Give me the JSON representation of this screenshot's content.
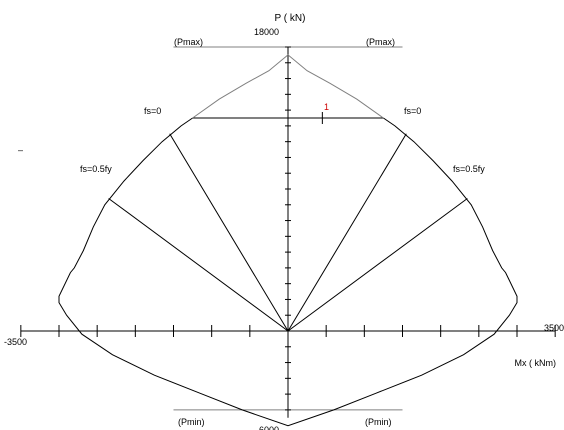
{
  "chart_data": {
    "type": "line",
    "xlabel": "Mx ( kNm)",
    "ylabel": "P ( kN)",
    "xlim": [
      -3500,
      3500
    ],
    "ylim": [
      -6000,
      18000
    ],
    "x_tick_labels": {
      "min": "-3500",
      "max": "3500"
    },
    "y_tick_labels": {
      "max": "18000",
      "min": "6000"
    },
    "x_minor_step": 500,
    "y_minor_step": 1000,
    "pmax_cap": 13500,
    "pmax_line_y": 18000,
    "pmin_line_y": -5000,
    "labels": {
      "pmax_left": "(Pmax)",
      "pmax_right": "(Pmax)",
      "pmin_left": "(Pmin)",
      "pmin_right": "(Pmin)",
      "fs0_left": "fs=0",
      "fs0_right": "fs=0",
      "fs05_left": "fs=0.5fy",
      "fs05_right": "fs=0.5fy",
      "marker": "1",
      "stray_mark": "–"
    },
    "series": [
      {
        "role": "interaction-envelope",
        "color": "#000000",
        "x": [
          -1250,
          -1400,
          -1650,
          -1900,
          -2150,
          -2400,
          -2550,
          -2680,
          -2800,
          -2850,
          -3000,
          -3000,
          -2900,
          -2700,
          -2300,
          -1750,
          -1150,
          -600,
          0,
          600,
          1150,
          1750,
          2300,
          2700,
          2900,
          3000,
          3000,
          2850,
          2800,
          2680,
          2550,
          2400,
          2150,
          1900,
          1650,
          1400,
          1250
        ],
        "y": [
          13500,
          13000,
          12000,
          10800,
          9500,
          8000,
          6600,
          5100,
          4000,
          3700,
          2200,
          1800,
          1000,
          -200,
          -1500,
          -2800,
          -3950,
          -5000,
          -6000,
          -5000,
          -3950,
          -2800,
          -1500,
          -200,
          1000,
          1800,
          2200,
          3700,
          4000,
          5100,
          6600,
          8000,
          9500,
          10800,
          12000,
          13000,
          13500
        ]
      },
      {
        "role": "pmax-transition",
        "color": "#808080",
        "x": [
          -1250,
          -900,
          -550,
          -250,
          0,
          250,
          550,
          900,
          1250
        ],
        "y": [
          13500,
          14700,
          15700,
          16500,
          17500,
          16500,
          15700,
          14700,
          13500
        ]
      },
      {
        "role": "strain-lines",
        "color": "#000000",
        "segments": [
          {
            "x": [
              0,
              -1550
            ],
            "y": [
              0,
              12500
            ]
          },
          {
            "x": [
              0,
              1550
            ],
            "y": [
              0,
              12500
            ]
          },
          {
            "x": [
              0,
              -2350
            ],
            "y": [
              0,
              8400
            ]
          },
          {
            "x": [
              0,
              2350
            ],
            "y": [
              0,
              8400
            ]
          }
        ]
      },
      {
        "role": "load-point",
        "color": "#000000",
        "x": [
          450
        ],
        "y": [
          13500
        ]
      }
    ]
  }
}
